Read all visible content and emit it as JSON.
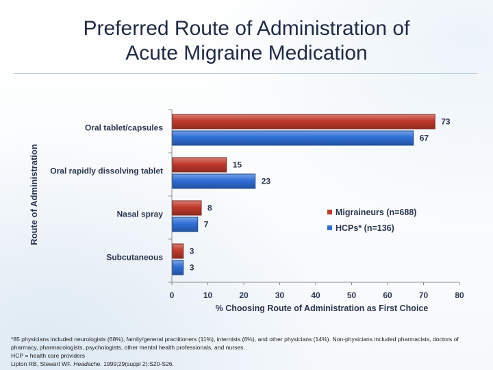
{
  "slide": {
    "title_line1": "Preferred Route of Administration of",
    "title_line2": "Acute Migraine Medication"
  },
  "chart_data": {
    "type": "bar",
    "orientation": "horizontal",
    "categories": [
      "Oral tablet/capsules",
      "Oral rapidly dissolving tablet",
      "Nasal spray",
      "Subcutaneous"
    ],
    "series": [
      {
        "name": "Migraineurs (n=688)",
        "values": [
          73,
          15,
          8,
          3
        ],
        "color": "#c0392b"
      },
      {
        "name": "HCPs* (n=136)",
        "values": [
          67,
          23,
          7,
          3
        ],
        "color": "#2f6fd6"
      }
    ],
    "xlabel": "% Choosing Route of Administration as First Choice",
    "ylabel": "Route of Administration",
    "xlim": [
      0,
      80
    ],
    "xticks": [
      0,
      10,
      20,
      30,
      40,
      50,
      60,
      70,
      80
    ],
    "legend_position": "right-middle"
  },
  "footnote": {
    "line1": "*85 physicians included neurologists (68%), family/general practitioners (11%), internists (6%), and other physicians (14%). Non-physicians included pharmacists, doctors of pharmacy, pharmacologists, psychologists, other mental health professionals, and nurses.",
    "line2": "HCP = health care providers",
    "citation_authors": "Lipton RB, Stewart WF. ",
    "citation_journal": "Headache.",
    "citation_rest": " 1999;29(suppl 2):S20-S26."
  }
}
